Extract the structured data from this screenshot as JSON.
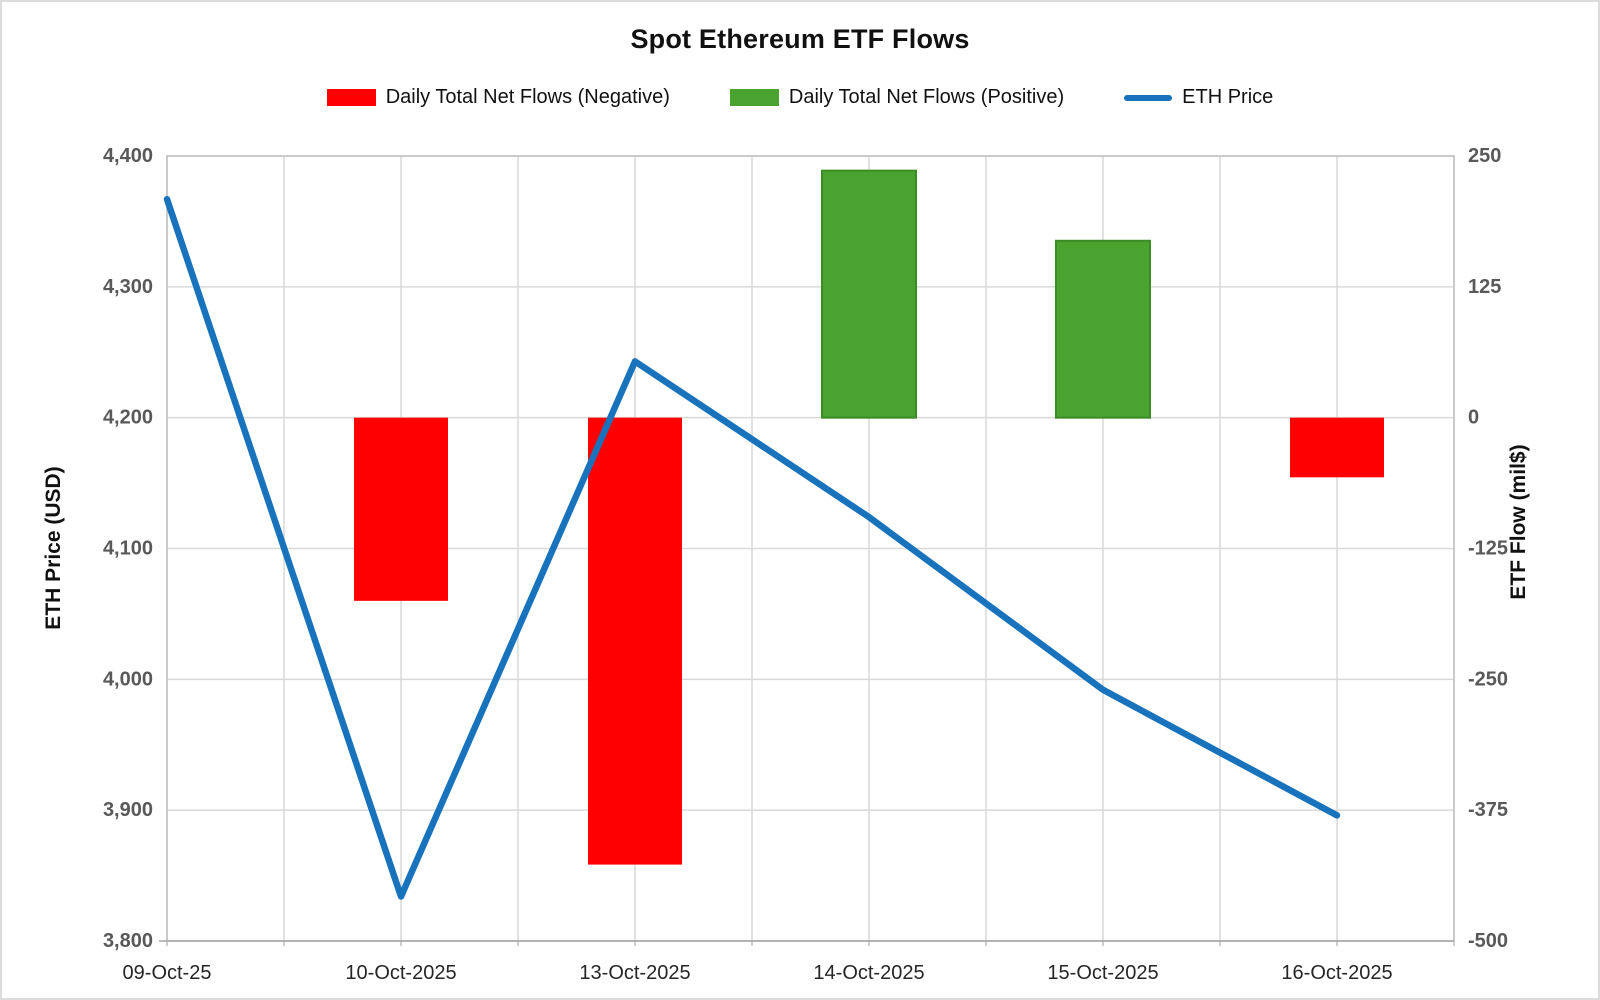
{
  "title": "Spot Ethereum ETF Flows",
  "chart_data": {
    "type": "combo",
    "categories": [
      "09-Oct-25",
      "10-Oct-2025",
      "13-Oct-2025",
      "14-Oct-2025",
      "15-Oct-2025",
      "16-Oct-2025"
    ],
    "series": [
      {
        "name": "Daily Total Net Flows (Negative)",
        "chart": "bar",
        "axis": "right",
        "color": "#FF0000",
        "values": [
          null,
          -175,
          -427,
          null,
          null,
          -57
        ]
      },
      {
        "name": "Daily Total Net Flows (Positive)",
        "chart": "bar",
        "axis": "right",
        "color": "#4AA32E",
        "border_color": "#3C8C26",
        "values": [
          null,
          null,
          null,
          236,
          169,
          null
        ]
      },
      {
        "name": "ETH Price",
        "chart": "line",
        "axis": "left",
        "color": "#1873BC",
        "values": [
          4367,
          3834,
          4243,
          4124,
          3992,
          3896
        ]
      }
    ],
    "left_axis": {
      "title": "ETH Price (USD)",
      "min": 3800,
      "max": 4400,
      "tick_labels": [
        "4,400",
        "4,300",
        "4,200",
        "4,100",
        "4,000",
        "3,900",
        "3,800"
      ]
    },
    "right_axis": {
      "title": "ETF Flow (mil$)",
      "min": -500,
      "max": 250,
      "tick_labels": [
        "250",
        "125",
        "0",
        "-125",
        "-250",
        "-375",
        "-500"
      ]
    },
    "grid": true,
    "legend_position": "top"
  },
  "colors": {
    "gridline": "#D9D9D9",
    "frame": "#BFBFBF",
    "axis_line": "#A6A6A6",
    "y_tick_text": "#595959",
    "x_tick_text": "#262626"
  }
}
